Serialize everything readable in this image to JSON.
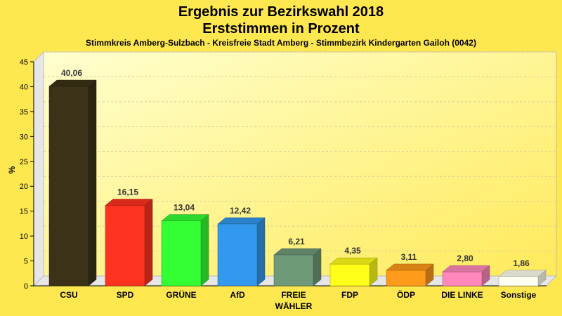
{
  "chart_data": {
    "type": "bar",
    "title": "Ergebnis zur Bezirkswahl 2018",
    "title2": "Erststimmen in Prozent",
    "subtitle": "Stimmkreis Amberg-Sulzbach - Kreisfreie Stadt Amberg - Stimmbezirk Kindergarten Gailoh (0042)",
    "ylabel": "%",
    "ylim": [
      0,
      45
    ],
    "yticks": [
      "0",
      "5",
      "10",
      "15",
      "20",
      "25",
      "30",
      "35",
      "40",
      "45"
    ],
    "categories": [
      {
        "line1": "CSU",
        "line2": ""
      },
      {
        "line1": "SPD",
        "line2": ""
      },
      {
        "line1": "GRÜNE",
        "line2": ""
      },
      {
        "line1": "AfD",
        "line2": ""
      },
      {
        "line1": "FREIE",
        "line2": "WÄHLER"
      },
      {
        "line1": "FDP",
        "line2": ""
      },
      {
        "line1": "ÖDP",
        "line2": ""
      },
      {
        "line1": "DIE LINKE",
        "line2": ""
      },
      {
        "line1": "Sonstige",
        "line2": ""
      }
    ],
    "values": [
      40.06,
      16.15,
      13.04,
      12.42,
      6.21,
      4.35,
      3.11,
      2.8,
      1.86
    ],
    "value_labels": [
      "40,06",
      "16,15",
      "13,04",
      "12,42",
      "6,21",
      "4,35",
      "3,11",
      "2,80",
      "1,86"
    ],
    "colors": [
      "#3b3218",
      "#ff3320",
      "#33ff33",
      "#3399ee",
      "#6f9a7a",
      "#ffff1a",
      "#ff9a1a",
      "#ff88bb",
      "#fffff0"
    ],
    "grid": true,
    "legend": "none"
  }
}
